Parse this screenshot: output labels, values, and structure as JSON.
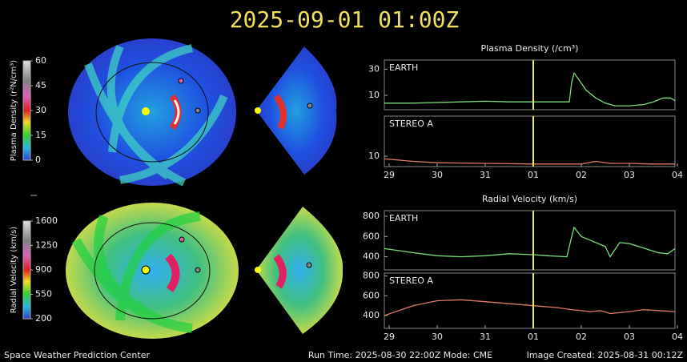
{
  "header": {
    "title": "2025-09-01  01:00Z"
  },
  "colorbars": [
    {
      "label": "Plasma Density (r²N/cm³)",
      "lim": [
        0,
        60
      ],
      "ticks": [
        60,
        45,
        30,
        15,
        0
      ]
    },
    {
      "label": "Radial Velocity (km/s)",
      "lim": [
        200,
        1600
      ],
      "ticks": [
        1600,
        1250,
        900,
        550,
        200
      ]
    }
  ],
  "chart_data": [
    {
      "type": "line",
      "title": "Plasma Density (/cm³)",
      "label": "EARTH",
      "color": "#7fdc7f",
      "x": [
        -0.1,
        0.5,
        1.0,
        1.5,
        2.0,
        2.5,
        3.0,
        3.5,
        3.75,
        3.8,
        3.85,
        3.95,
        4.1,
        4.3,
        4.5,
        4.7,
        4.8,
        5.0,
        5.3,
        5.5,
        5.7,
        5.85,
        5.95
      ],
      "values": [
        4,
        4,
        4.5,
        5,
        5.5,
        5,
        5,
        5,
        5,
        20,
        27,
        22,
        14,
        8,
        4,
        2,
        2,
        2,
        3,
        5,
        8,
        8,
        6
      ],
      "xlim": [
        -0.1,
        5.95
      ],
      "ylim": [
        -1,
        37
      ],
      "yticks": [
        10,
        30
      ],
      "marker_x": 3
    },
    {
      "type": "line",
      "label": "STEREO A",
      "color": "#e07a6a",
      "x": [
        -0.1,
        0.5,
        1.0,
        2.0,
        3.0,
        4.0,
        4.3,
        4.6,
        5.0,
        5.5,
        5.95
      ],
      "values": [
        8,
        6,
        5,
        4.5,
        4,
        4,
        6,
        4.5,
        4.5,
        4,
        4
      ],
      "xlim": [
        -0.1,
        5.95
      ],
      "ylim": [
        2,
        41
      ],
      "yticks": [
        10
      ],
      "xticks": [
        {
          "value": 0,
          "label": "29"
        },
        {
          "value": 1,
          "label": "30"
        },
        {
          "value": 2,
          "label": "31"
        },
        {
          "value": 3,
          "label": "01"
        },
        {
          "value": 4,
          "label": "02"
        },
        {
          "value": 5,
          "label": "03"
        },
        {
          "value": 6,
          "label": "04"
        }
      ],
      "marker_x": 3
    },
    {
      "type": "line",
      "title": "Radial Velocity (km/s)",
      "label": "EARTH",
      "color": "#7fdc7f",
      "x": [
        -0.1,
        0.5,
        1.0,
        1.5,
        2.0,
        2.5,
        3.0,
        3.3,
        3.7,
        3.8,
        3.85,
        4.0,
        4.2,
        4.4,
        4.5,
        4.6,
        4.8,
        5.0,
        5.2,
        5.6,
        5.8,
        5.95
      ],
      "values": [
        480,
        440,
        410,
        400,
        410,
        430,
        420,
        410,
        400,
        600,
        690,
        600,
        560,
        520,
        500,
        400,
        540,
        530,
        500,
        440,
        430,
        480
      ],
      "xlim": [
        -0.1,
        5.95
      ],
      "ylim": [
        270,
        855
      ],
      "yticks": [
        400,
        600,
        800
      ],
      "marker_x": 3
    },
    {
      "type": "line",
      "label": "STEREO A",
      "color": "#e07a6a",
      "x": [
        -0.1,
        0.5,
        1.0,
        1.5,
        2.0,
        2.5,
        3.0,
        3.5,
        3.8,
        4.2,
        4.4,
        4.6,
        5.0,
        5.3,
        5.6,
        5.95
      ],
      "values": [
        400,
        500,
        550,
        560,
        540,
        520,
        500,
        480,
        460,
        440,
        450,
        420,
        440,
        460,
        450,
        440
      ],
      "xlim": [
        -0.1,
        5.95
      ],
      "ylim": [
        270,
        830
      ],
      "yticks": [
        400,
        600,
        800
      ],
      "xticks": [
        {
          "value": 0,
          "label": "29"
        },
        {
          "value": 1,
          "label": "30"
        },
        {
          "value": 2,
          "label": "31"
        },
        {
          "value": 3,
          "label": "01"
        },
        {
          "value": 4,
          "label": "02"
        },
        {
          "value": 5,
          "label": "03"
        },
        {
          "value": 6,
          "label": "04"
        }
      ],
      "marker_x": 3
    }
  ],
  "footer": {
    "left": "Space Weather Prediction Center",
    "center": "Run Time: 2025-08-30 22:00Z  Mode: CME",
    "right": "Image Created: 2025-08-31 00:12Z"
  }
}
